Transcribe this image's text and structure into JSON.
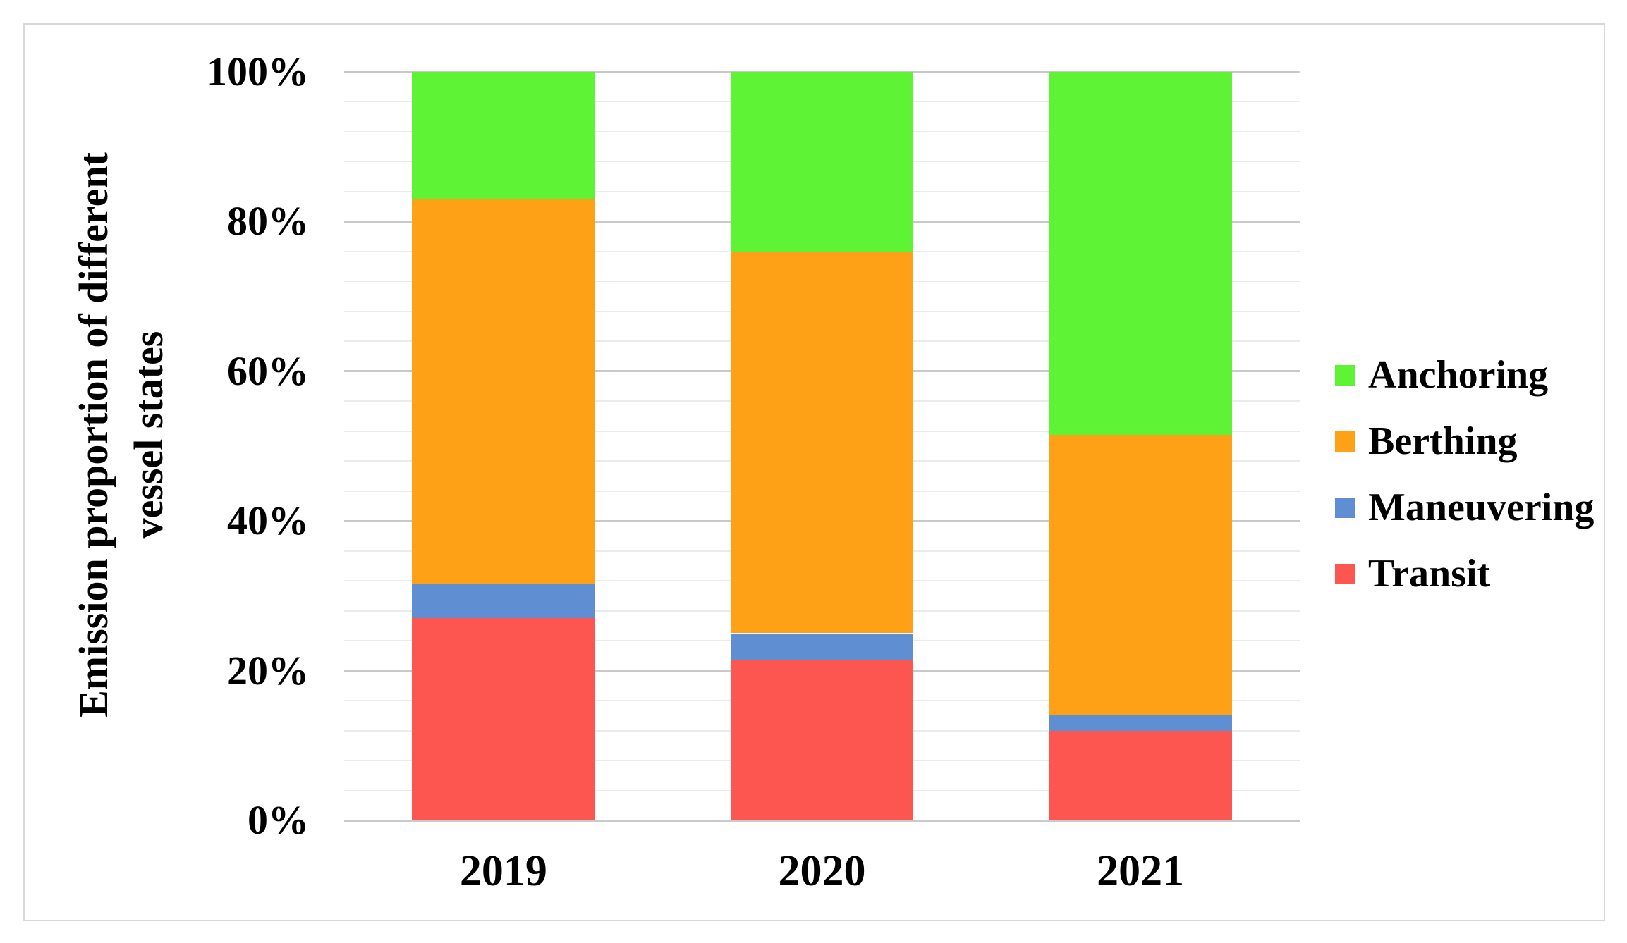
{
  "figure": {
    "background": "#ffffff",
    "border_color": "#d8d8d8",
    "gridline_minor_color": "#ebebeb",
    "gridline_major_color": "#c9c9c9",
    "text_color": "#000000"
  },
  "chart_data": {
    "type": "bar",
    "stacked": true,
    "percent_stacked": true,
    "title": "",
    "xlabel": "",
    "ylabel": "Emission proportion of different vessel states",
    "ylabel_lines": [
      "Emission proportion of different",
      "vessel states"
    ],
    "units": "%",
    "categories": [
      "2019",
      "2020",
      "2021"
    ],
    "series": [
      {
        "name": "Transit",
        "color": "#fd5651",
        "values": [
          27,
          21.5,
          12
        ]
      },
      {
        "name": "Maneuvering",
        "color": "#608ed3",
        "values": [
          4.5,
          3.5,
          2
        ]
      },
      {
        "name": "Berthing",
        "color": "#fea116",
        "values": [
          51.5,
          51,
          37.5
        ]
      },
      {
        "name": "Anchoring",
        "color": "#5ef334",
        "values": [
          17,
          24,
          48.5
        ]
      }
    ],
    "stack_order_bottom_to_top": [
      "Transit",
      "Maneuvering",
      "Berthing",
      "Anchoring"
    ],
    "legend_order": [
      "Anchoring",
      "Berthing",
      "Maneuvering",
      "Transit"
    ],
    "legend_position": "right",
    "y_ticks": [
      {
        "label": "100%",
        "value": 100
      },
      {
        "label": "80%",
        "value": 80
      },
      {
        "label": "60%",
        "value": 60
      },
      {
        "label": "40%",
        "value": 40
      },
      {
        "label": "20%",
        "value": 20
      },
      {
        "label": "0%",
        "value": 0
      }
    ],
    "ylim": [
      0,
      100
    ],
    "grid": true,
    "major_unit_percent": 20,
    "minor_unit_percent": 4
  }
}
